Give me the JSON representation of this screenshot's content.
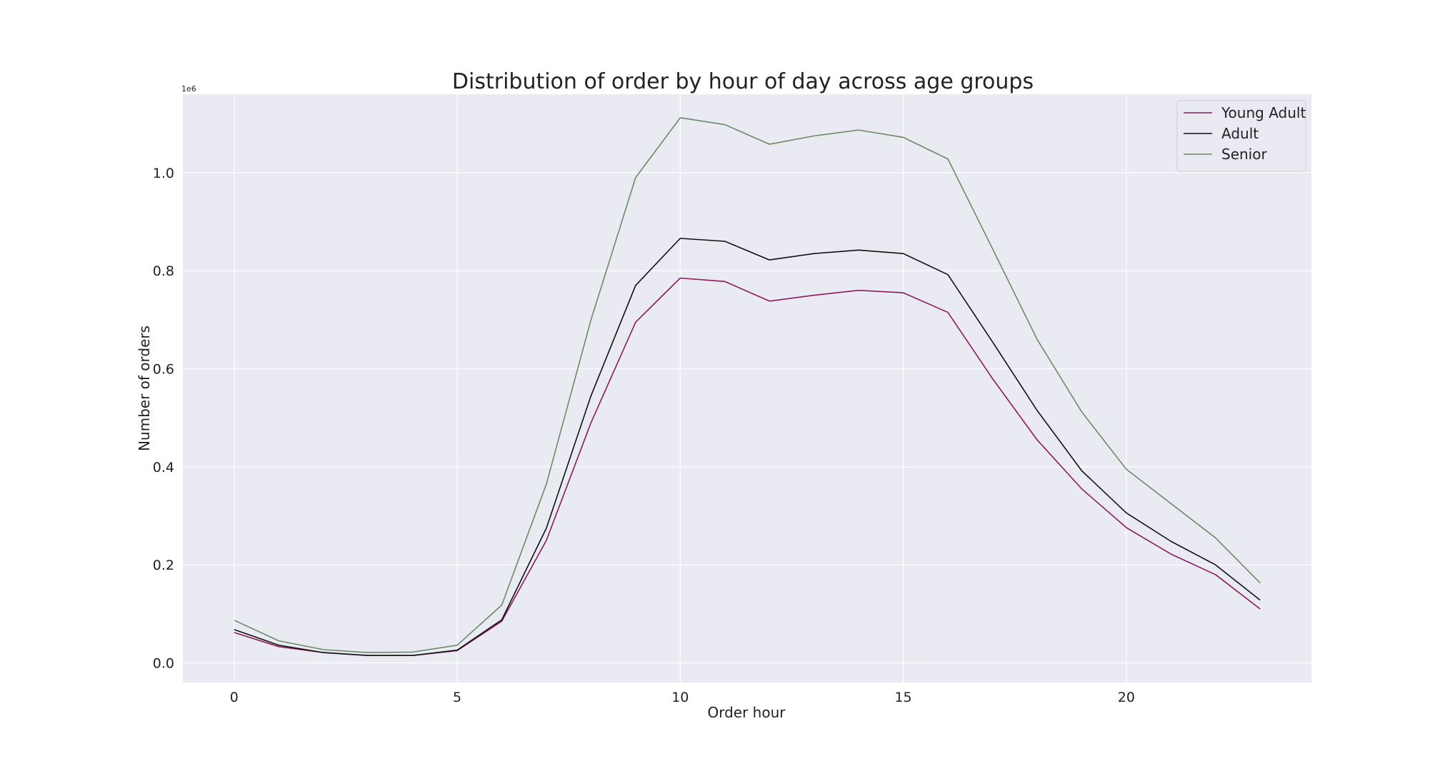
{
  "chart_data": {
    "type": "line",
    "title": "Distribution of order by hour of day across age groups",
    "xlabel": "Order hour",
    "ylabel": "Number of orders",
    "y_offset_label": "1e6",
    "x": [
      0,
      1,
      2,
      3,
      4,
      5,
      6,
      7,
      8,
      9,
      10,
      11,
      12,
      13,
      14,
      15,
      16,
      17,
      18,
      19,
      20,
      21,
      22,
      23
    ],
    "xlim": [
      -1.15,
      24.15
    ],
    "ylim": [
      -0.04,
      1.16
    ],
    "x_ticks": [
      0,
      5,
      10,
      15,
      20
    ],
    "x_tick_labels": [
      "0",
      "5",
      "10",
      "15",
      "20"
    ],
    "y_ticks": [
      0.0,
      0.2,
      0.4,
      0.6,
      0.8,
      1.0
    ],
    "y_tick_labels": [
      "0.0",
      "0.2",
      "0.4",
      "0.6",
      "0.8",
      "1.0"
    ],
    "grid": true,
    "legend_position": "top-right",
    "series": [
      {
        "name": "Young Adult",
        "color": "#8b1a5e",
        "values": [
          0.062,
          0.033,
          0.021,
          0.015,
          0.015,
          0.025,
          0.085,
          0.25,
          0.49,
          0.695,
          0.785,
          0.778,
          0.738,
          0.75,
          0.76,
          0.755,
          0.715,
          0.58,
          0.455,
          0.355,
          0.276,
          0.222,
          0.18,
          0.11
        ]
      },
      {
        "name": "Adult",
        "color": "#111111",
        "values": [
          0.068,
          0.036,
          0.021,
          0.015,
          0.015,
          0.026,
          0.088,
          0.275,
          0.545,
          0.77,
          0.866,
          0.86,
          0.822,
          0.835,
          0.842,
          0.835,
          0.792,
          0.655,
          0.515,
          0.392,
          0.306,
          0.248,
          0.2,
          0.128
        ]
      },
      {
        "name": "Senior",
        "color": "#6b8a66",
        "values": [
          0.087,
          0.045,
          0.027,
          0.021,
          0.022,
          0.036,
          0.118,
          0.365,
          0.7,
          0.99,
          1.112,
          1.098,
          1.058,
          1.075,
          1.087,
          1.072,
          1.028,
          0.845,
          0.66,
          0.512,
          0.395,
          0.325,
          0.255,
          0.163
        ]
      }
    ]
  }
}
